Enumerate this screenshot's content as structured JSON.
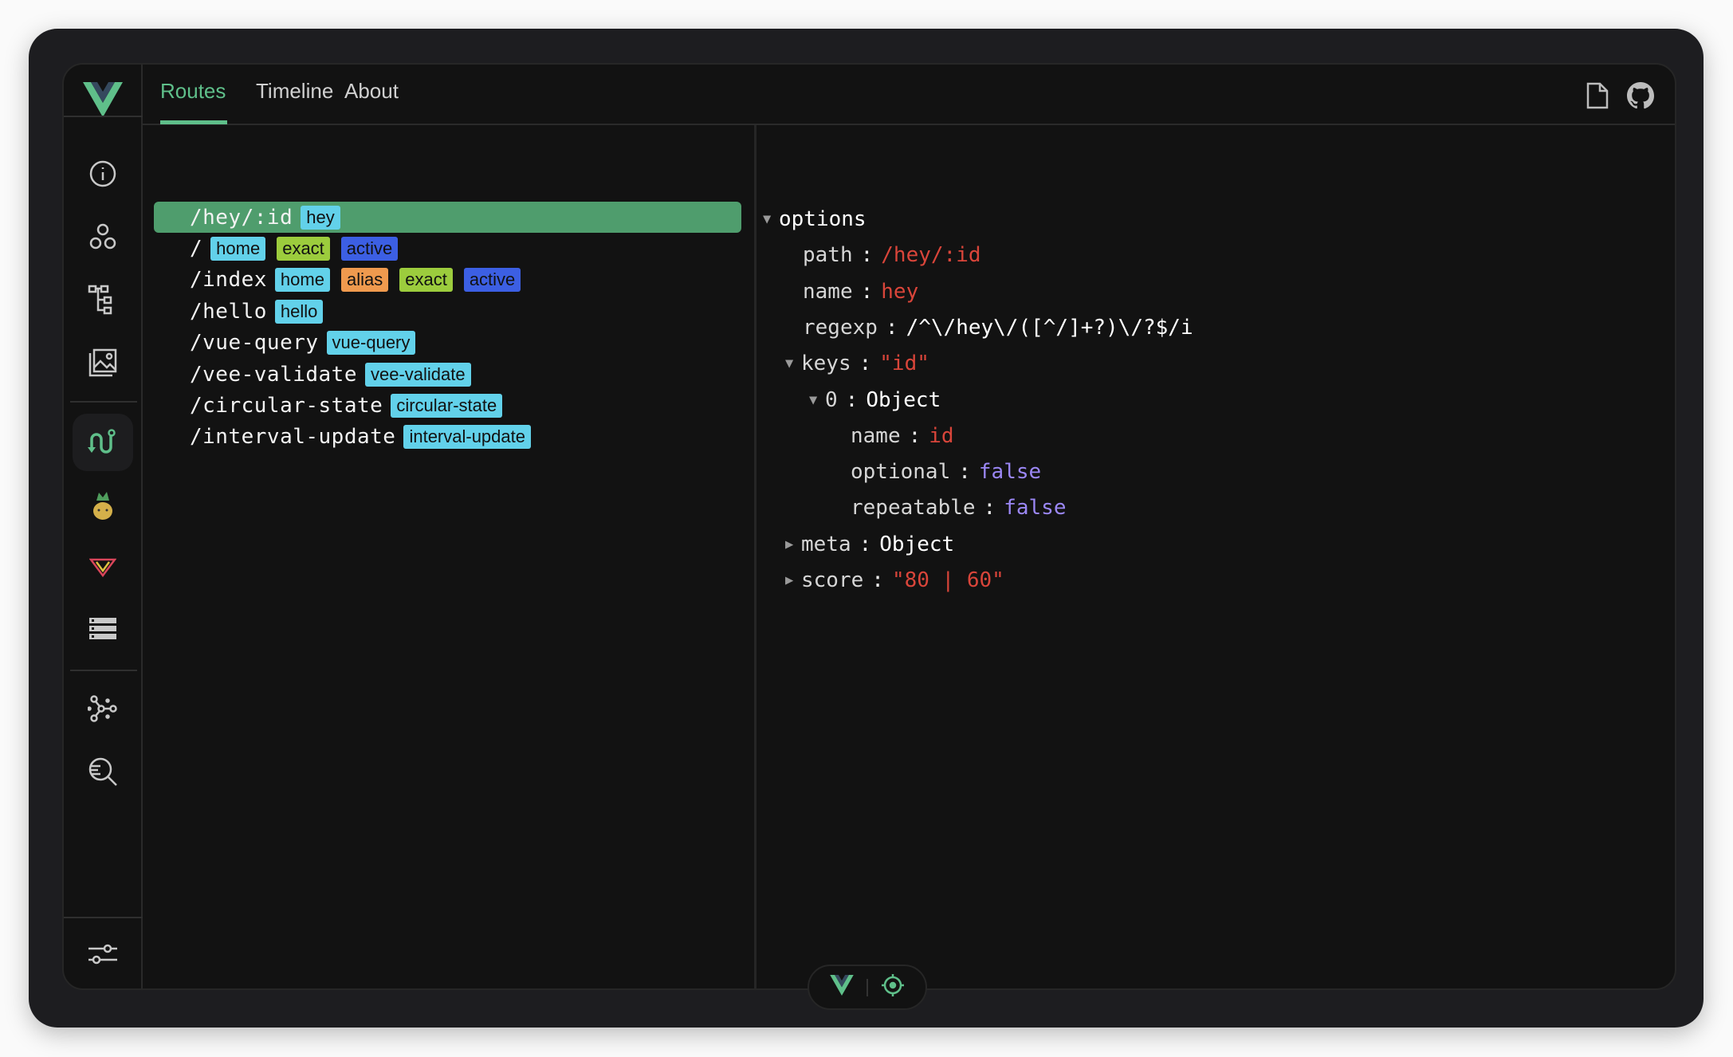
{
  "header": {
    "tabs": [
      {
        "label": "Routes",
        "active": true
      },
      {
        "label": "Timeline"
      },
      {
        "label": "About"
      }
    ]
  },
  "sidebar": {
    "items": [
      "info-icon",
      "components-icon",
      "tree-icon",
      "assets-icon",
      "router-icon",
      "pinia-icon",
      "vue-query-icon",
      "list-icon",
      "graph-icon",
      "inspect-icon",
      "settings-icon"
    ],
    "active": "router-icon"
  },
  "routes": [
    {
      "path": "/hey/:id",
      "selected": true,
      "tags": [
        {
          "label": "hey",
          "color": "#62d1ea"
        }
      ]
    },
    {
      "path": "/",
      "tags": [
        {
          "label": "home",
          "color": "#62d1ea"
        },
        {
          "label": "exact",
          "color": "#9ccc3d"
        },
        {
          "label": "active",
          "color": "#3c5fe3"
        }
      ]
    },
    {
      "path": "/index",
      "tags": [
        {
          "label": "home",
          "color": "#62d1ea"
        },
        {
          "label": "alias",
          "color": "#ef9a4e"
        },
        {
          "label": "exact",
          "color": "#9ccc3d"
        },
        {
          "label": "active",
          "color": "#3c5fe3"
        }
      ]
    },
    {
      "path": "/hello",
      "tags": [
        {
          "label": "hello",
          "color": "#62d1ea"
        }
      ]
    },
    {
      "path": "/vue-query",
      "tags": [
        {
          "label": "vue-query",
          "color": "#62d1ea"
        }
      ]
    },
    {
      "path": "/vee-validate",
      "tags": [
        {
          "label": "vee-validate",
          "color": "#62d1ea"
        }
      ]
    },
    {
      "path": "/circular-state",
      "tags": [
        {
          "label": "circular-state",
          "color": "#62d1ea"
        }
      ]
    },
    {
      "path": "/interval-update",
      "tags": [
        {
          "label": "interval-update",
          "color": "#62d1ea"
        }
      ]
    }
  ],
  "inspector": [
    {
      "key": "options",
      "depth": 0,
      "arrow": "down"
    },
    {
      "key": "path",
      "value": "/hey/:id",
      "type": "str",
      "depth": 1
    },
    {
      "key": "name",
      "value": "hey",
      "type": "str",
      "depth": 1
    },
    {
      "key": "regexp",
      "value": "/^\\/hey\\/([^/]+?)\\/?$/i",
      "type": "plain",
      "depth": 1
    },
    {
      "key": "keys",
      "value": "\"id\"",
      "type": "str",
      "depth": 1,
      "arrow": "down"
    },
    {
      "key": "0",
      "value": "Object",
      "type": "plain",
      "depth": 2,
      "arrow": "down"
    },
    {
      "key": "name",
      "value": "id",
      "type": "str",
      "depth": 3
    },
    {
      "key": "optional",
      "value": "false",
      "type": "bool",
      "depth": 3
    },
    {
      "key": "repeatable",
      "value": "false",
      "type": "bool",
      "depth": 3
    },
    {
      "key": "meta",
      "value": "Object",
      "type": "plain",
      "depth": 1,
      "arrow": "right"
    },
    {
      "key": "score",
      "value": "\"80 | 60\"",
      "type": "str",
      "depth": 1,
      "arrow": "right"
    }
  ],
  "colors": {
    "accent": "#5fbf8a",
    "selected_row": "#4f9d6d"
  }
}
